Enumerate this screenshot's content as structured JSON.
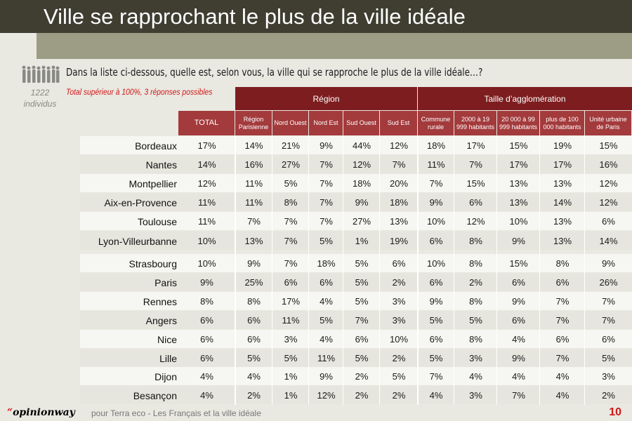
{
  "title": "Ville se rapprochant le plus de la ville idéale",
  "question": "Dans la liste ci-dessous, quelle est, selon vous, la ville qui se rapproche le plus de la ville idéale…?",
  "sample": {
    "count": "1222",
    "unit": "individus"
  },
  "note": "Total supérieur à 100%, 3 réponses possibles",
  "groups": {
    "region": "Région",
    "taille": "Taille d’agglomération"
  },
  "columns": [
    "TOTAL",
    "Région Parisienne",
    "Nord Ouest",
    "Nord Est",
    "Sud Ouest",
    "Sud Est",
    "Commune rurale",
    "2000 à 19 999 habitants",
    "20 000 à 99 999 habitants",
    "plus de 100 000 habitants",
    "Unité urbaine de Paris"
  ],
  "rows": [
    {
      "city": "Bordeaux",
      "values": [
        "17%",
        "14%",
        "21%",
        "9%",
        "44%",
        "12%",
        "18%",
        "17%",
        "15%",
        "19%",
        "15%"
      ]
    },
    {
      "city": "Nantes",
      "values": [
        "14%",
        "16%",
        "27%",
        "7%",
        "12%",
        "7%",
        "11%",
        "7%",
        "17%",
        "17%",
        "16%"
      ]
    },
    {
      "city": "Montpellier",
      "values": [
        "12%",
        "11%",
        "5%",
        "7%",
        "18%",
        "20%",
        "7%",
        "15%",
        "13%",
        "13%",
        "12%"
      ]
    },
    {
      "city": "Aix-en-Provence",
      "values": [
        "11%",
        "11%",
        "8%",
        "7%",
        "9%",
        "18%",
        "9%",
        "6%",
        "13%",
        "14%",
        "12%"
      ]
    },
    {
      "city": "Toulouse",
      "values": [
        "11%",
        "7%",
        "7%",
        "7%",
        "27%",
        "13%",
        "10%",
        "12%",
        "10%",
        "13%",
        "6%"
      ]
    },
    {
      "city": "Lyon-Villeurbanne",
      "values": [
        "10%",
        "13%",
        "7%",
        "5%",
        "1%",
        "19%",
        "6%",
        "8%",
        "9%",
        "13%",
        "14%"
      ]
    },
    {
      "city": "Strasbourg",
      "values": [
        "10%",
        "9%",
        "7%",
        "18%",
        "5%",
        "6%",
        "10%",
        "8%",
        "15%",
        "8%",
        "9%"
      ]
    },
    {
      "city": "Paris",
      "values": [
        "9%",
        "25%",
        "6%",
        "6%",
        "5%",
        "2%",
        "6%",
        "2%",
        "6%",
        "6%",
        "26%"
      ]
    },
    {
      "city": "Rennes",
      "values": [
        "8%",
        "8%",
        "17%",
        "4%",
        "5%",
        "3%",
        "9%",
        "8%",
        "9%",
        "7%",
        "7%"
      ]
    },
    {
      "city": "Angers",
      "values": [
        "6%",
        "6%",
        "11%",
        "5%",
        "7%",
        "3%",
        "5%",
        "5%",
        "6%",
        "7%",
        "7%"
      ]
    },
    {
      "city": "Nice",
      "values": [
        "6%",
        "6%",
        "3%",
        "4%",
        "6%",
        "10%",
        "6%",
        "8%",
        "4%",
        "6%",
        "6%"
      ]
    },
    {
      "city": "Lille",
      "values": [
        "6%",
        "5%",
        "5%",
        "11%",
        "5%",
        "2%",
        "5%",
        "3%",
        "9%",
        "7%",
        "5%"
      ]
    },
    {
      "city": "Dijon",
      "values": [
        "4%",
        "4%",
        "1%",
        "9%",
        "2%",
        "5%",
        "7%",
        "4%",
        "4%",
        "4%",
        "3%"
      ]
    },
    {
      "city": "Besançon",
      "values": [
        "4%",
        "2%",
        "1%",
        "12%",
        "2%",
        "2%",
        "4%",
        "3%",
        "7%",
        "4%",
        "2%"
      ]
    }
  ],
  "footer": {
    "brand_quote": "“",
    "brand": "opinionway",
    "text": "pour Terra eco - Les Français et la ville idéale",
    "page": "10"
  },
  "colors": {
    "header_dark": "#7d1d1f",
    "header": "#a33a3c",
    "title_band": "#3f3e31",
    "accent_red": "#d01818"
  }
}
